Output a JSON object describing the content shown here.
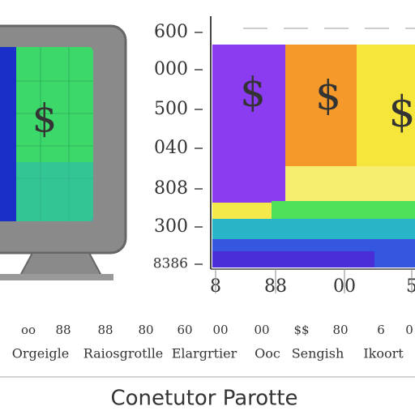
{
  "y_labels": [
    "600",
    "000",
    "500",
    "040",
    "808",
    "300",
    "8386"
  ],
  "x_labels": [
    "8",
    "88",
    "00",
    "5"
  ],
  "small_labels": [
    "oo",
    "88",
    "88",
    "80",
    "60",
    "00",
    "00",
    "$$",
    "80",
    "6",
    "0"
  ],
  "word_labels": [
    "Orgeigle",
    "Raiosgrotlle",
    "Elargrtier",
    "Ooc",
    "Sengish",
    "Ikoort"
  ],
  "symbols": [
    "$",
    "$",
    "$",
    "$"
  ],
  "footer": "Conetutor Parotte"
}
